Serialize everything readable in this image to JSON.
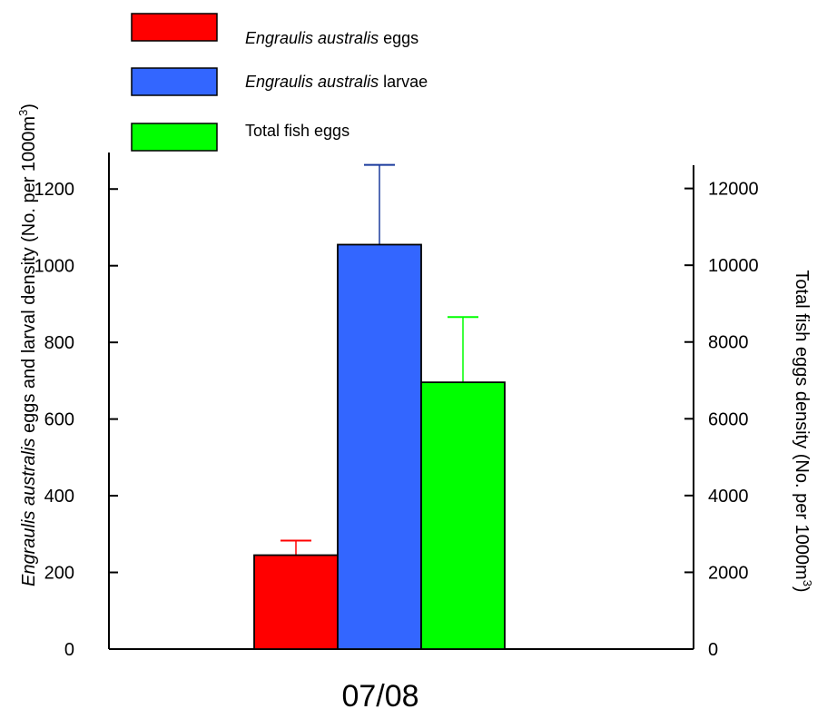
{
  "chart_data": {
    "type": "bar",
    "categories": [
      "07/08"
    ],
    "series": [
      {
        "name_italic": "Engraulis australis",
        "name_plain": " eggs",
        "axis": "left",
        "color": "#ff0000",
        "error_color": "#ff0000",
        "values": [
          245
        ],
        "error_upper": [
          283
        ]
      },
      {
        "name_italic": "Engraulis australis",
        "name_plain": " larvae",
        "axis": "left",
        "color": "#3366ff",
        "error_color": "#1a3a9c",
        "values": [
          1055
        ],
        "error_upper": [
          1263
        ]
      },
      {
        "name_italic": "",
        "name_plain": "Total fish eggs",
        "axis": "right",
        "color": "#00ff00",
        "error_color": "#00ff00",
        "values": [
          6950
        ],
        "error_upper": [
          8650
        ]
      }
    ],
    "left_axis": {
      "label_italic": "Engraulis australis",
      "label_plain": " eggs and larval density (No. per  1000m",
      "label_sup": "3",
      "label_end": ")",
      "ylim": [
        0,
        1300
      ],
      "ticks": [
        0,
        200,
        400,
        600,
        800,
        1000,
        1200
      ]
    },
    "right_axis": {
      "label_plain": "Total fish eggs density (No. per 1000m",
      "label_sup": "3",
      "label_end": ")",
      "ylim": [
        0,
        12700
      ],
      "ticks": [
        0,
        2000,
        4000,
        6000,
        8000,
        10000,
        12000
      ]
    },
    "legend": {
      "placement": "top-left"
    },
    "grid": false
  }
}
